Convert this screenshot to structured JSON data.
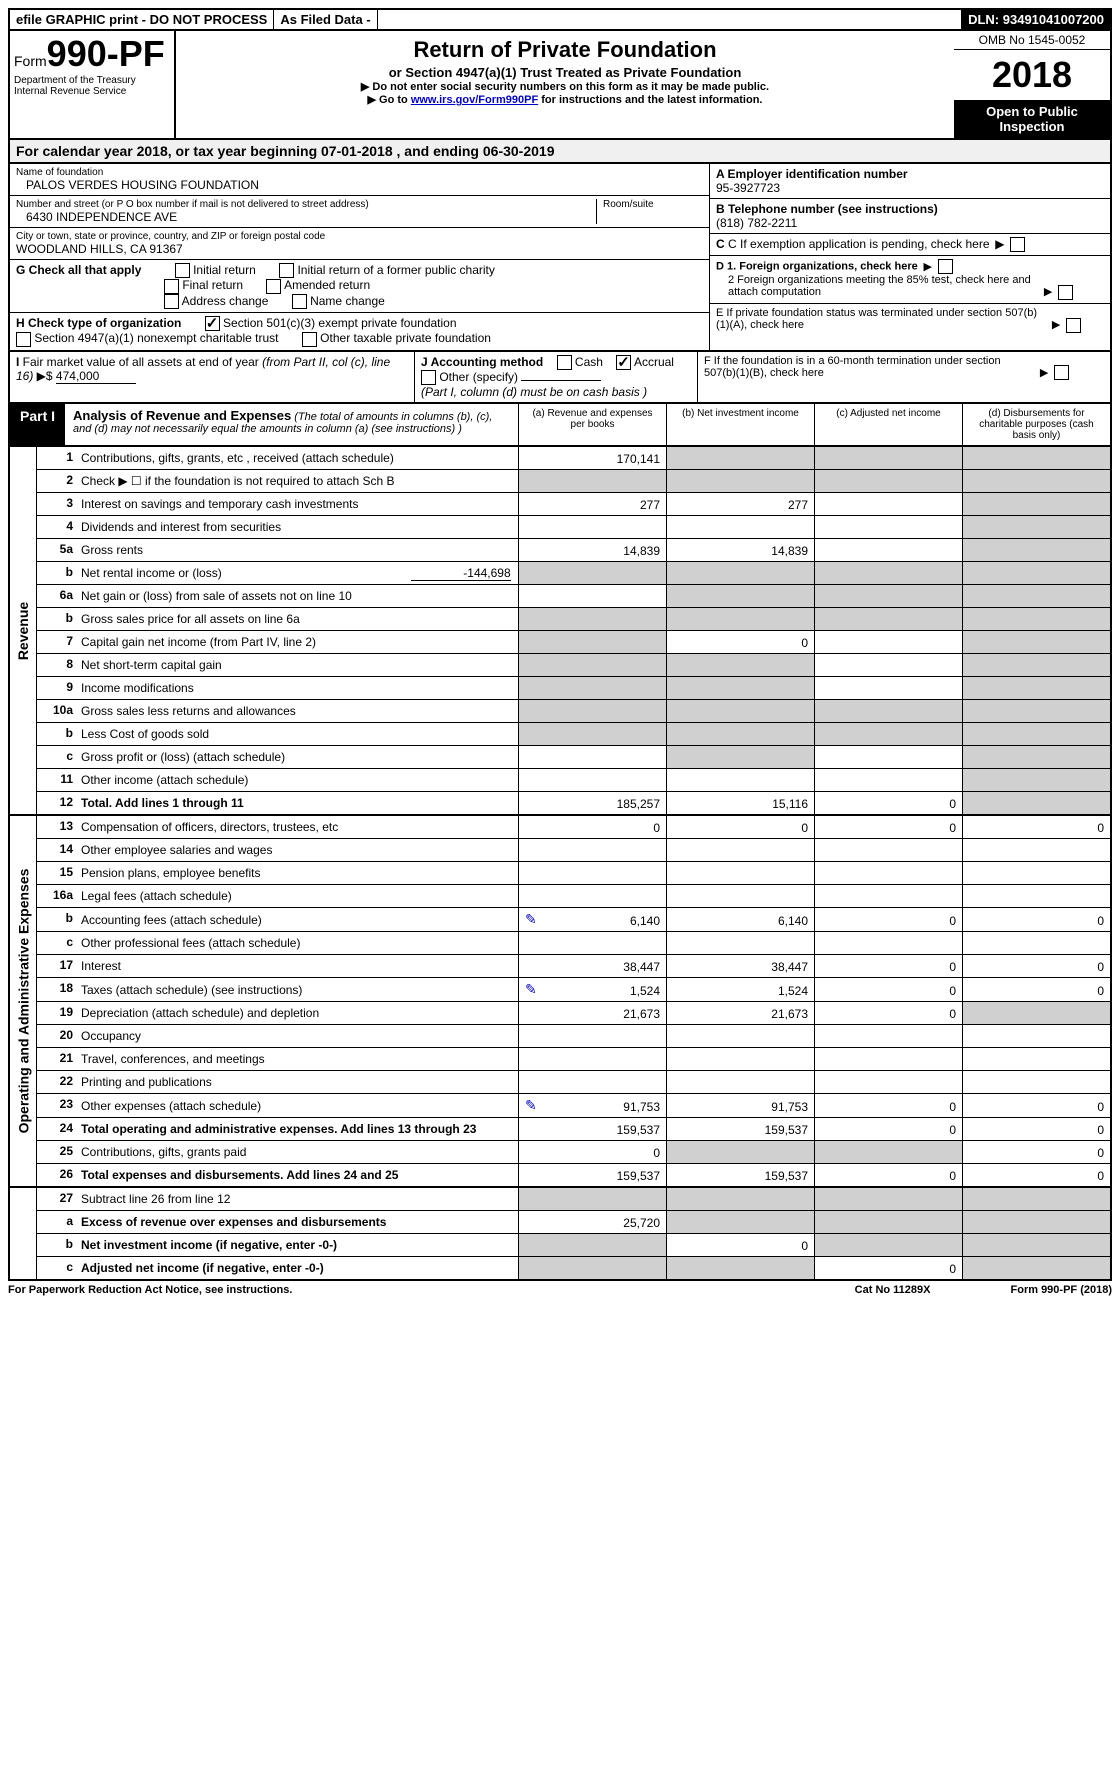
{
  "top": {
    "efile": "efile GRAPHIC print - DO NOT PROCESS",
    "asfiled": "As Filed Data -",
    "dln_label": "DLN: ",
    "dln": "93491041007200"
  },
  "header": {
    "form_prefix": "Form",
    "form_num": "990-PF",
    "dept1": "Department of the Treasury",
    "dept2": "Internal Revenue Service",
    "title": "Return of Private Foundation",
    "subtitle": "or Section 4947(a)(1) Trust Treated as Private Foundation",
    "instr1": "▶ Do not enter social security numbers on this form as it may be made public.",
    "instr2_pre": "▶ Go to ",
    "instr2_link": "www.irs.gov/Form990PF",
    "instr2_post": " for instructions and the latest information.",
    "omb": "OMB No 1545-0052",
    "year": "2018",
    "open": "Open to Public Inspection"
  },
  "calyear": {
    "text_pre": "For calendar year 2018, or tax year beginning ",
    "begin": "07-01-2018",
    "mid": " , and ending ",
    "end": "06-30-2019"
  },
  "info": {
    "name_label": "Name of foundation",
    "name": "PALOS VERDES HOUSING FOUNDATION",
    "addr_label": "Number and street (or P O  box number if mail is not delivered to street address)",
    "room_label": "Room/suite",
    "addr": "6430 INDEPENDENCE AVE",
    "city_label": "City or town, state or province, country, and ZIP or foreign postal code",
    "city": "WOODLAND HILLS, CA  91367",
    "ein_label": "A Employer identification number",
    "ein": "95-3927723",
    "tel_label": "B Telephone number (see instructions)",
    "tel": "(818) 782-2211",
    "c_text": "C If exemption application is pending, check here",
    "g_label": "G Check all that apply",
    "g_opts": [
      "Initial return",
      "Initial return of a former public charity",
      "Final return",
      "Amended return",
      "Address change",
      "Name change"
    ],
    "h_label": "H Check type of organization",
    "h_opt1": "Section 501(c)(3) exempt private foundation",
    "h_opt2": "Section 4947(a)(1) nonexempt charitable trust",
    "h_opt3": "Other taxable private foundation",
    "d1": "D 1. Foreign organizations, check here",
    "d2": "2  Foreign organizations meeting the 85% test, check here and attach computation",
    "e_text": "E  If private foundation status was terminated under section 507(b)(1)(A), check here",
    "i_label": "I Fair market value of all assets at end of year (from Part II, col  (c), line 16) ▶$ ",
    "i_value": "474,000",
    "j_label": "J Accounting method",
    "j_cash": "Cash",
    "j_accrual": "Accrual",
    "j_other": "Other (specify)",
    "j_note": "(Part I, column (d) must be on cash basis )",
    "f_text": "F  If the foundation is in a 60-month termination under section 507(b)(1)(B), check here"
  },
  "part1": {
    "label": "Part I",
    "title": "Analysis of Revenue and Expenses",
    "note": " (The total of amounts in columns (b), (c), and (d) may not necessarily equal the amounts in column (a) (see instructions) )",
    "col_a": "(a)   Revenue and expenses per books",
    "col_b": "(b)  Net investment income",
    "col_c": "(c)  Adjusted net income",
    "col_d": "(d)  Disbursements for charitable purposes (cash basis only)"
  },
  "sides": {
    "rev": "Revenue",
    "exp": "Operating and Administrative Expenses"
  },
  "rows": {
    "r1": {
      "n": "1",
      "d": "Contributions, gifts, grants, etc , received (attach schedule)",
      "a": "170,141"
    },
    "r2": {
      "n": "2",
      "d": "Check ▶ ☐ if the foundation is not required to attach Sch  B"
    },
    "r3": {
      "n": "3",
      "d": "Interest on savings and temporary cash investments",
      "a": "277",
      "b": "277"
    },
    "r4": {
      "n": "4",
      "d": "Dividends and interest from securities"
    },
    "r5a": {
      "n": "5a",
      "d": "Gross rents",
      "a": "14,839",
      "b": "14,839"
    },
    "r5b": {
      "n": "b",
      "d": "Net rental income or (loss)",
      "extra": "-144,698"
    },
    "r6a": {
      "n": "6a",
      "d": "Net gain or (loss) from sale of assets not on line 10"
    },
    "r6b": {
      "n": "b",
      "d": "Gross sales price for all assets on line 6a"
    },
    "r7": {
      "n": "7",
      "d": "Capital gain net income (from Part IV, line 2)",
      "b": "0"
    },
    "r8": {
      "n": "8",
      "d": "Net short-term capital gain"
    },
    "r9": {
      "n": "9",
      "d": "Income modifications"
    },
    "r10a": {
      "n": "10a",
      "d": "Gross sales less returns and allowances"
    },
    "r10b": {
      "n": "b",
      "d": "Less  Cost of goods sold"
    },
    "r10c": {
      "n": "c",
      "d": "Gross profit or (loss) (attach schedule)"
    },
    "r11": {
      "n": "11",
      "d": "Other income (attach schedule)"
    },
    "r12": {
      "n": "12",
      "d": "Total. Add lines 1 through 11",
      "a": "185,257",
      "b": "15,116",
      "c": "0",
      "bold": true
    },
    "r13": {
      "n": "13",
      "d": "Compensation of officers, directors, trustees, etc",
      "a": "0",
      "b": "0",
      "c": "0",
      "dd": "0"
    },
    "r14": {
      "n": "14",
      "d": "Other employee salaries and wages"
    },
    "r15": {
      "n": "15",
      "d": "Pension plans, employee benefits"
    },
    "r16a": {
      "n": "16a",
      "d": "Legal fees (attach schedule)"
    },
    "r16b": {
      "n": "b",
      "d": "Accounting fees (attach schedule)",
      "a": "6,140",
      "b": "6,140",
      "c": "0",
      "dd": "0",
      "icon": true
    },
    "r16c": {
      "n": "c",
      "d": "Other professional fees (attach schedule)"
    },
    "r17": {
      "n": "17",
      "d": "Interest",
      "a": "38,447",
      "b": "38,447",
      "c": "0",
      "dd": "0"
    },
    "r18": {
      "n": "18",
      "d": "Taxes (attach schedule) (see instructions)",
      "a": "1,524",
      "b": "1,524",
      "c": "0",
      "dd": "0",
      "icon": true
    },
    "r19": {
      "n": "19",
      "d": "Depreciation (attach schedule) and depletion",
      "a": "21,673",
      "b": "21,673",
      "c": "0"
    },
    "r20": {
      "n": "20",
      "d": "Occupancy"
    },
    "r21": {
      "n": "21",
      "d": "Travel, conferences, and meetings"
    },
    "r22": {
      "n": "22",
      "d": "Printing and publications"
    },
    "r23": {
      "n": "23",
      "d": "Other expenses (attach schedule)",
      "a": "91,753",
      "b": "91,753",
      "c": "0",
      "dd": "0",
      "icon": true
    },
    "r24": {
      "n": "24",
      "d": "Total operating and administrative expenses. Add lines 13 through 23",
      "a": "159,537",
      "b": "159,537",
      "c": "0",
      "dd": "0",
      "bold": true
    },
    "r25": {
      "n": "25",
      "d": "Contributions, gifts, grants paid",
      "a": "0",
      "dd": "0"
    },
    "r26": {
      "n": "26",
      "d": "Total expenses and disbursements. Add lines 24 and 25",
      "a": "159,537",
      "b": "159,537",
      "c": "0",
      "dd": "0",
      "bold": true
    },
    "r27": {
      "n": "27",
      "d": "Subtract line 26 from line 12"
    },
    "r27a": {
      "n": "a",
      "d": "Excess of revenue over expenses and disbursements",
      "a": "25,720",
      "bold": true
    },
    "r27b": {
      "n": "b",
      "d": "Net investment income (if negative, enter -0-)",
      "b": "0",
      "bold": true
    },
    "r27c": {
      "n": "c",
      "d": "Adjusted net income (if negative, enter -0-)",
      "c": "0",
      "bold": true
    }
  },
  "footer": {
    "left": "For Paperwork Reduction Act Notice, see instructions.",
    "mid": "Cat  No  11289X",
    "right": "Form 990-PF (2018)"
  },
  "style": {
    "greyed_cells_note": "Cells shaded grey are non-applicable in the source form",
    "colors": {
      "black": "#000000",
      "white": "#ffffff",
      "grey": "#d0d0d0",
      "headergrey": "#f0f0f0",
      "link": "#0000cc"
    }
  }
}
